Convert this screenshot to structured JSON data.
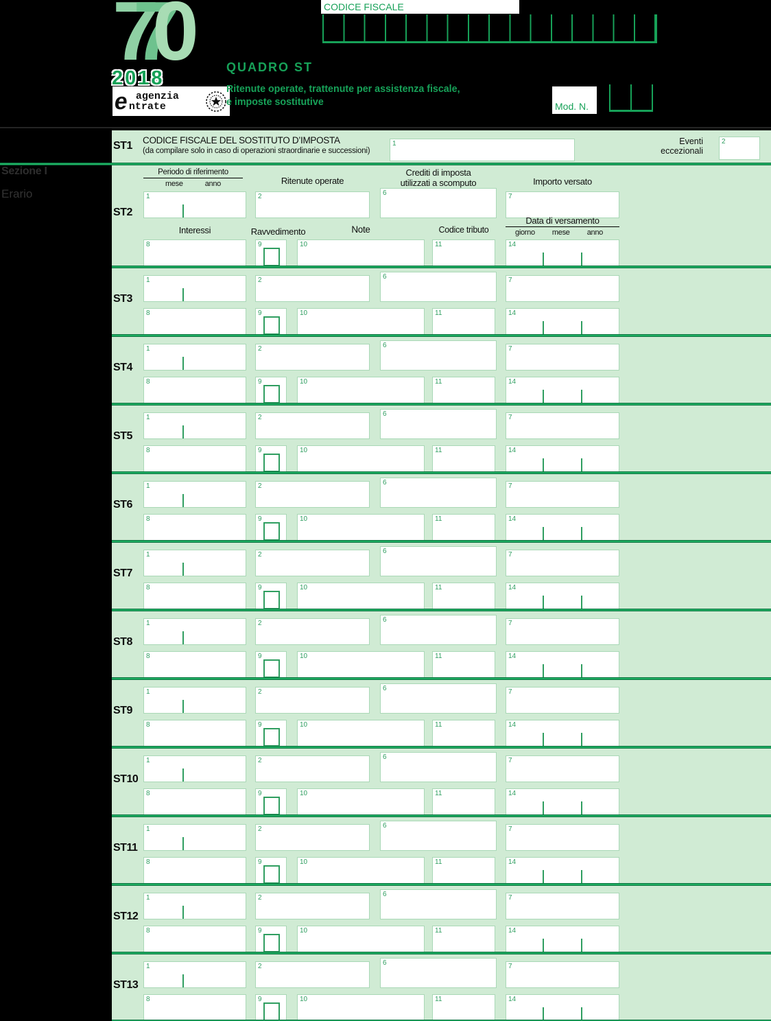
{
  "header": {
    "logo_digit1": "7",
    "logo_digit2": "7",
    "logo_digit3": "0",
    "logo_year": "2018",
    "agency_line1": "agenzia",
    "agency_line2": "ntrate",
    "agency_mark": "e",
    "codice_fiscale_label": "CODICE FISCALE",
    "quadro_title": "QUADRO  ST",
    "subtitle_line1": "Ritenute operate, trattenute per assistenza fiscale,",
    "subtitle_line2": "e imposte sostitutive",
    "mod_n_label": "Mod. N."
  },
  "sidebar": {
    "section_label": "Sezione I",
    "section_name": "Erario"
  },
  "st1": {
    "label": "ST1",
    "title": "CODICE FISCALE DEL SOSTITUTO D’IMPOSTA",
    "subtitle": "(da compilare solo in caso di operazioni straordinarie e successioni)",
    "field1_num": "1",
    "eventi_line1": "Eventi",
    "eventi_line2": "eccezionali",
    "field2_num": "2"
  },
  "st2": {
    "label": "ST2",
    "headers": {
      "periodo": "Periodo di riferimento",
      "mese": "mese",
      "anno": "anno",
      "ritenute": "Ritenute operate",
      "crediti_line1": "Crediti di imposta",
      "crediti_line2": "utilizzati a scomputo",
      "importo": "Importo versato",
      "interessi": "Interessi",
      "ravvedimento": "Ravvedimento",
      "note": "Note",
      "codice_tributo": "Codice tributo",
      "data_versamento": "Data di versamento",
      "giorno": "giorno",
      "mese2": "mese",
      "anno2": "anno"
    }
  },
  "field_numbers": {
    "f1": "1",
    "f2": "2",
    "f6": "6",
    "f7": "7",
    "f8": "8",
    "f9": "9",
    "f10": "10",
    "f11": "11",
    "f14": "14"
  },
  "row_labels": [
    "ST3",
    "ST4",
    "ST5",
    "ST6",
    "ST7",
    "ST8",
    "ST9",
    "ST10",
    "ST11",
    "ST12",
    "ST13"
  ],
  "colors": {
    "accent_green": "#17a158",
    "row_background": "#d0ebd4",
    "separator_green": "#1fae62",
    "field_number_green": "#2f9e60"
  }
}
